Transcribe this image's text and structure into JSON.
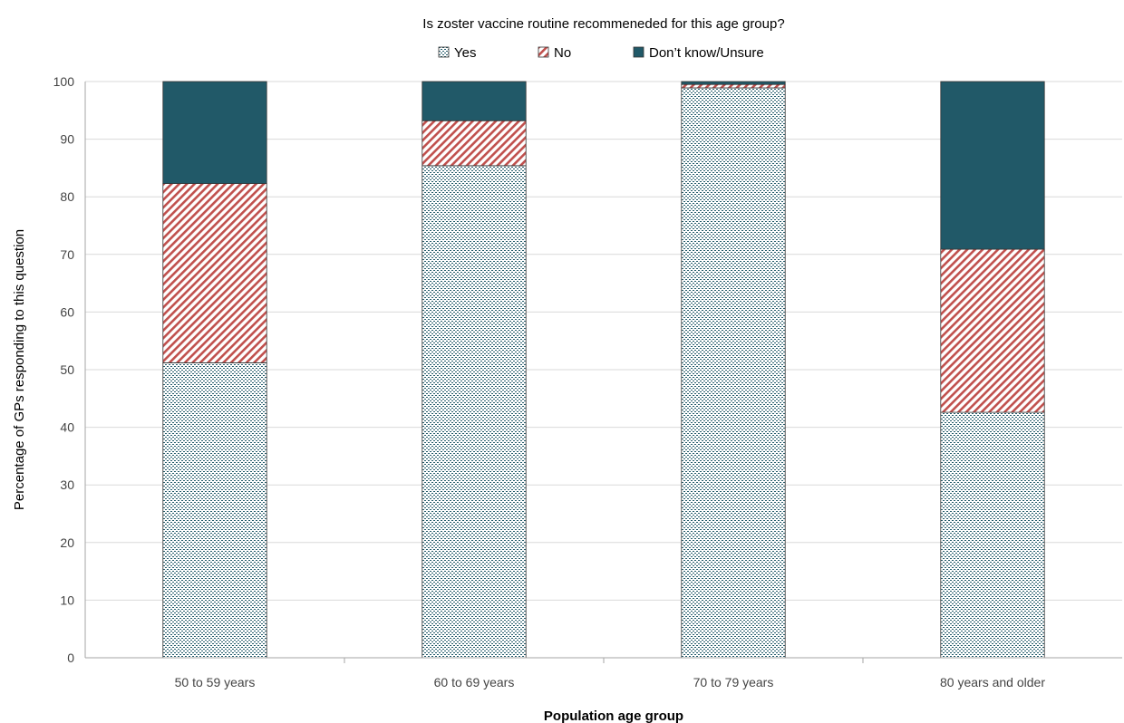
{
  "chart_data": {
    "type": "bar",
    "stacked": true,
    "title": "Is zoster vaccine routine recommeneded for this age group?",
    "xlabel": "Population age group",
    "ylabel": "Percentage of GPs responding to this question",
    "ylim": [
      0,
      100
    ],
    "yticks": [
      "0",
      "10",
      "20",
      "30",
      "40",
      "50",
      "60",
      "70",
      "80",
      "90",
      "100"
    ],
    "grid": true,
    "legend_position": "top",
    "categories": [
      "50 to 59 years",
      "60 to 69 years",
      "70 to 79 years",
      "80 years and older"
    ],
    "series": [
      {
        "name": "Yes",
        "values": [
          51.2,
          85.4,
          98.9,
          42.6
        ],
        "color": "#b7c4c6",
        "pattern": "dots"
      },
      {
        "name": "No",
        "values": [
          31.1,
          7.8,
          0.6,
          28.3
        ],
        "color": "#c0504d",
        "pattern": "diagonal-stripes"
      },
      {
        "name": "Don’t know/Unsure",
        "values": [
          17.7,
          6.8,
          0.5,
          29.1
        ],
        "color": "#215968",
        "pattern": "solid"
      }
    ]
  }
}
